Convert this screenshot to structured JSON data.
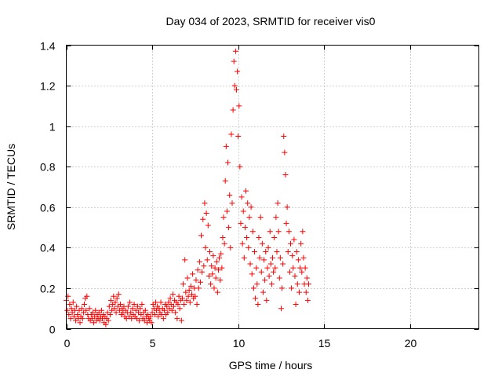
{
  "chart_data": {
    "type": "scatter",
    "title": "Day 034 of 2023, SRMTID for receiver vis0",
    "xlabel": "GPS time / hours",
    "ylabel": "SRMTID / TECUs",
    "xlim": [
      0,
      24
    ],
    "ylim": [
      0,
      1.4
    ],
    "xticks": [
      0,
      5,
      10,
      15,
      20
    ],
    "xtick_labels": [
      "0",
      "5",
      "10",
      "15",
      "20"
    ],
    "yticks": [
      0,
      0.2,
      0.4,
      0.6,
      0.8,
      1.0,
      1.2,
      1.4
    ],
    "ytick_labels": [
      "0",
      "0.2",
      "0.4",
      "0.6",
      "0.8",
      "1",
      "1.2",
      "1.4"
    ],
    "grid": true,
    "marker": "+",
    "color": "#ff0000",
    "series": [
      {
        "name": "SRMTID",
        "points": [
          [
            0.0,
            0.14
          ],
          [
            0.05,
            0.09
          ],
          [
            0.1,
            0.16
          ],
          [
            0.15,
            0.07
          ],
          [
            0.2,
            0.12
          ],
          [
            0.25,
            0.05
          ],
          [
            0.3,
            0.1
          ],
          [
            0.35,
            0.08
          ],
          [
            0.4,
            0.13
          ],
          [
            0.45,
            0.06
          ],
          [
            0.5,
            0.09
          ],
          [
            0.55,
            0.04
          ],
          [
            0.6,
            0.11
          ],
          [
            0.65,
            0.07
          ],
          [
            0.7,
            0.05
          ],
          [
            0.75,
            0.09
          ],
          [
            0.8,
            0.03
          ],
          [
            0.85,
            0.06
          ],
          [
            0.9,
            0.1
          ],
          [
            0.95,
            0.05
          ],
          [
            1.0,
            0.08
          ],
          [
            1.05,
            0.12
          ],
          [
            1.1,
            0.15
          ],
          [
            1.15,
            0.09
          ],
          [
            1.2,
            0.16
          ],
          [
            1.25,
            0.07
          ],
          [
            1.3,
            0.05
          ],
          [
            1.35,
            0.1
          ],
          [
            1.4,
            0.04
          ],
          [
            1.45,
            0.07
          ],
          [
            1.5,
            0.05
          ],
          [
            1.55,
            0.08
          ],
          [
            1.6,
            0.03
          ],
          [
            1.65,
            0.06
          ],
          [
            1.7,
            0.09
          ],
          [
            1.75,
            0.04
          ],
          [
            1.8,
            0.07
          ],
          [
            1.85,
            0.05
          ],
          [
            1.9,
            0.08
          ],
          [
            1.95,
            0.04
          ],
          [
            2.0,
            0.06
          ],
          [
            2.05,
            0.09
          ],
          [
            2.1,
            0.05
          ],
          [
            2.15,
            0.07
          ],
          [
            2.2,
            0.03
          ],
          [
            2.25,
            0.06
          ],
          [
            2.3,
            0.02
          ],
          [
            2.35,
            0.05
          ],
          [
            2.4,
            0.08
          ],
          [
            2.45,
            0.04
          ],
          [
            2.5,
            0.11
          ],
          [
            2.55,
            0.07
          ],
          [
            2.6,
            0.14
          ],
          [
            2.65,
            0.09
          ],
          [
            2.7,
            0.12
          ],
          [
            2.75,
            0.16
          ],
          [
            2.8,
            0.1
          ],
          [
            2.85,
            0.13
          ],
          [
            2.9,
            0.08
          ],
          [
            2.95,
            0.15
          ],
          [
            3.0,
            0.11
          ],
          [
            3.05,
            0.17
          ],
          [
            3.1,
            0.09
          ],
          [
            3.15,
            0.12
          ],
          [
            3.2,
            0.07
          ],
          [
            3.25,
            0.1
          ],
          [
            3.3,
            0.08
          ],
          [
            3.35,
            0.11
          ],
          [
            3.4,
            0.06
          ],
          [
            3.45,
            0.09
          ],
          [
            3.5,
            0.05
          ],
          [
            3.55,
            0.08
          ],
          [
            3.6,
            0.11
          ],
          [
            3.65,
            0.06
          ],
          [
            3.7,
            0.13
          ],
          [
            3.75,
            0.08
          ],
          [
            3.8,
            0.05
          ],
          [
            3.85,
            0.1
          ],
          [
            3.9,
            0.07
          ],
          [
            3.95,
            0.12
          ],
          [
            4.0,
            0.06
          ],
          [
            4.05,
            0.09
          ],
          [
            4.1,
            0.05
          ],
          [
            4.15,
            0.11
          ],
          [
            4.2,
            0.08
          ],
          [
            4.25,
            0.04
          ],
          [
            4.3,
            0.1
          ],
          [
            4.35,
            0.07
          ],
          [
            4.4,
            0.12
          ],
          [
            4.45,
            0.05
          ],
          [
            4.5,
            0.08
          ],
          [
            4.55,
            0.04
          ],
          [
            4.6,
            0.09
          ],
          [
            4.65,
            0.06
          ],
          [
            4.7,
            0.03
          ],
          [
            4.75,
            0.07
          ],
          [
            4.8,
            0.05
          ],
          [
            4.85,
            0.04
          ],
          [
            4.9,
            0.06
          ],
          [
            4.95,
            0.03
          ],
          [
            5.0,
            0.08
          ],
          [
            5.05,
            0.12
          ],
          [
            5.1,
            0.1
          ],
          [
            5.15,
            0.07
          ],
          [
            5.2,
            0.13
          ],
          [
            5.25,
            0.09
          ],
          [
            5.3,
            0.11
          ],
          [
            5.35,
            0.06
          ],
          [
            5.4,
            0.1
          ],
          [
            5.45,
            0.08
          ],
          [
            5.5,
            0.13
          ],
          [
            5.55,
            0.07
          ],
          [
            5.6,
            0.1
          ],
          [
            5.65,
            0.05
          ],
          [
            5.7,
            0.09
          ],
          [
            5.75,
            0.12
          ],
          [
            5.8,
            0.07
          ],
          [
            5.85,
            0.11
          ],
          [
            5.9,
            0.08
          ],
          [
            5.95,
            0.13
          ],
          [
            6.0,
            0.1
          ],
          [
            6.05,
            0.15
          ],
          [
            6.1,
            0.12
          ],
          [
            6.15,
            0.09
          ],
          [
            6.2,
            0.17
          ],
          [
            6.25,
            0.11
          ],
          [
            6.3,
            0.14
          ],
          [
            6.35,
            0.08
          ],
          [
            6.4,
            0.13
          ],
          [
            6.45,
            0.05
          ],
          [
            6.5,
            0.12
          ],
          [
            6.55,
            0.16
          ],
          [
            6.6,
            0.1
          ],
          [
            6.65,
            0.14
          ],
          [
            6.7,
            0.04
          ],
          [
            6.75,
            0.15
          ],
          [
            6.8,
            0.22
          ],
          [
            6.85,
            0.12
          ],
          [
            6.9,
            0.34
          ],
          [
            6.95,
            0.18
          ],
          [
            7.0,
            0.14
          ],
          [
            7.05,
            0.25
          ],
          [
            7.1,
            0.16
          ],
          [
            7.15,
            0.19
          ],
          [
            7.2,
            0.13
          ],
          [
            7.25,
            0.21
          ],
          [
            7.3,
            0.17
          ],
          [
            7.35,
            0.27
          ],
          [
            7.4,
            0.15
          ],
          [
            7.45,
            0.2
          ],
          [
            7.5,
            0.16
          ],
          [
            7.55,
            0.24
          ],
          [
            7.6,
            0.12
          ],
          [
            7.65,
            0.29
          ],
          [
            7.7,
            0.2
          ],
          [
            7.75,
            0.33
          ],
          [
            7.8,
            0.23
          ],
          [
            7.85,
            0.46
          ],
          [
            7.9,
            0.28
          ],
          [
            7.95,
            0.54
          ],
          [
            8.0,
            0.31
          ],
          [
            8.05,
            0.62
          ],
          [
            8.1,
            0.4
          ],
          [
            8.15,
            0.57
          ],
          [
            8.2,
            0.34
          ],
          [
            8.25,
            0.51
          ],
          [
            8.3,
            0.26
          ],
          [
            8.35,
            0.38
          ],
          [
            8.4,
            0.22
          ],
          [
            8.45,
            0.31
          ],
          [
            8.5,
            0.27
          ],
          [
            8.55,
            0.36
          ],
          [
            8.6,
            0.2
          ],
          [
            8.65,
            0.3
          ],
          [
            8.7,
            0.25
          ],
          [
            8.75,
            0.33
          ],
          [
            8.8,
            0.18
          ],
          [
            8.85,
            0.29
          ],
          [
            8.9,
            0.35
          ],
          [
            8.95,
            0.24
          ],
          [
            9.0,
            0.37
          ],
          [
            9.05,
            0.3
          ],
          [
            9.1,
            0.45
          ],
          [
            9.15,
            0.55
          ],
          [
            9.2,
            0.42
          ],
          [
            9.25,
            0.73
          ],
          [
            9.3,
            0.9
          ],
          [
            9.35,
            0.58
          ],
          [
            9.4,
            0.82
          ],
          [
            9.45,
            0.5
          ],
          [
            9.5,
            0.66
          ],
          [
            9.55,
            0.4
          ],
          [
            9.6,
            0.96
          ],
          [
            9.65,
            0.62
          ],
          [
            9.7,
            1.08
          ],
          [
            9.75,
            1.32
          ],
          [
            9.8,
            1.2
          ],
          [
            9.85,
            1.37
          ],
          [
            9.9,
            1.18
          ],
          [
            9.95,
            1.27
          ],
          [
            10.0,
            0.95
          ],
          [
            10.05,
            1.1
          ],
          [
            10.1,
            0.8
          ],
          [
            10.15,
            0.52
          ],
          [
            10.2,
            0.65
          ],
          [
            10.25,
            0.42
          ],
          [
            10.3,
            0.58
          ],
          [
            10.35,
            0.35
          ],
          [
            10.4,
            0.5
          ],
          [
            10.45,
            0.68
          ],
          [
            10.5,
            0.45
          ],
          [
            10.55,
            0.62
          ],
          [
            10.6,
            0.4
          ],
          [
            10.65,
            0.55
          ],
          [
            10.7,
            0.32
          ],
          [
            10.75,
            0.6
          ],
          [
            10.8,
            0.27
          ],
          [
            10.85,
            0.48
          ],
          [
            10.9,
            0.2
          ],
          [
            10.95,
            0.38
          ],
          [
            11.0,
            0.15
          ],
          [
            11.05,
            0.3
          ],
          [
            11.1,
            0.22
          ],
          [
            11.15,
            0.12
          ],
          [
            11.2,
            0.45
          ],
          [
            11.25,
            0.35
          ],
          [
            11.3,
            0.55
          ],
          [
            11.35,
            0.28
          ],
          [
            11.4,
            0.42
          ],
          [
            11.45,
            0.18
          ],
          [
            11.5,
            0.34
          ],
          [
            11.55,
            0.24
          ],
          [
            11.6,
            0.38
          ],
          [
            11.65,
            0.14
          ],
          [
            11.7,
            0.3
          ],
          [
            11.75,
            0.4
          ],
          [
            11.8,
            0.26
          ],
          [
            11.85,
            0.48
          ],
          [
            11.9,
            0.32
          ],
          [
            11.95,
            0.22
          ],
          [
            12.0,
            0.35
          ],
          [
            12.05,
            0.28
          ],
          [
            12.1,
            0.45
          ],
          [
            12.15,
            0.3
          ],
          [
            12.2,
            0.55
          ],
          [
            12.25,
            0.38
          ],
          [
            12.3,
            0.62
          ],
          [
            12.35,
            0.48
          ],
          [
            12.4,
            0.25
          ],
          [
            12.45,
            0.35
          ],
          [
            12.5,
            0.1
          ],
          [
            12.55,
            0.2
          ],
          [
            12.6,
            0.32
          ],
          [
            12.65,
            0.95
          ],
          [
            12.7,
            0.87
          ],
          [
            12.75,
            0.76
          ],
          [
            12.8,
            0.52
          ],
          [
            12.85,
            0.6
          ],
          [
            12.9,
            0.38
          ],
          [
            12.95,
            0.48
          ],
          [
            13.0,
            0.28
          ],
          [
            13.05,
            0.42
          ],
          [
            13.1,
            0.2
          ],
          [
            13.15,
            0.36
          ],
          [
            13.2,
            0.3
          ],
          [
            13.25,
            0.44
          ],
          [
            13.3,
            0.26
          ],
          [
            13.35,
            0.12
          ],
          [
            13.4,
            0.38
          ],
          [
            13.45,
            0.22
          ],
          [
            13.5,
            0.34
          ],
          [
            13.55,
            0.18
          ],
          [
            13.6,
            0.3
          ],
          [
            13.65,
            0.42
          ],
          [
            13.7,
            0.28
          ],
          [
            13.75,
            0.48
          ],
          [
            13.8,
            0.35
          ],
          [
            13.85,
            0.22
          ],
          [
            13.9,
            0.3
          ],
          [
            13.95,
            0.18
          ],
          [
            14.0,
            0.25
          ],
          [
            14.05,
            0.14
          ],
          [
            14.1,
            0.22
          ]
        ]
      }
    ]
  }
}
